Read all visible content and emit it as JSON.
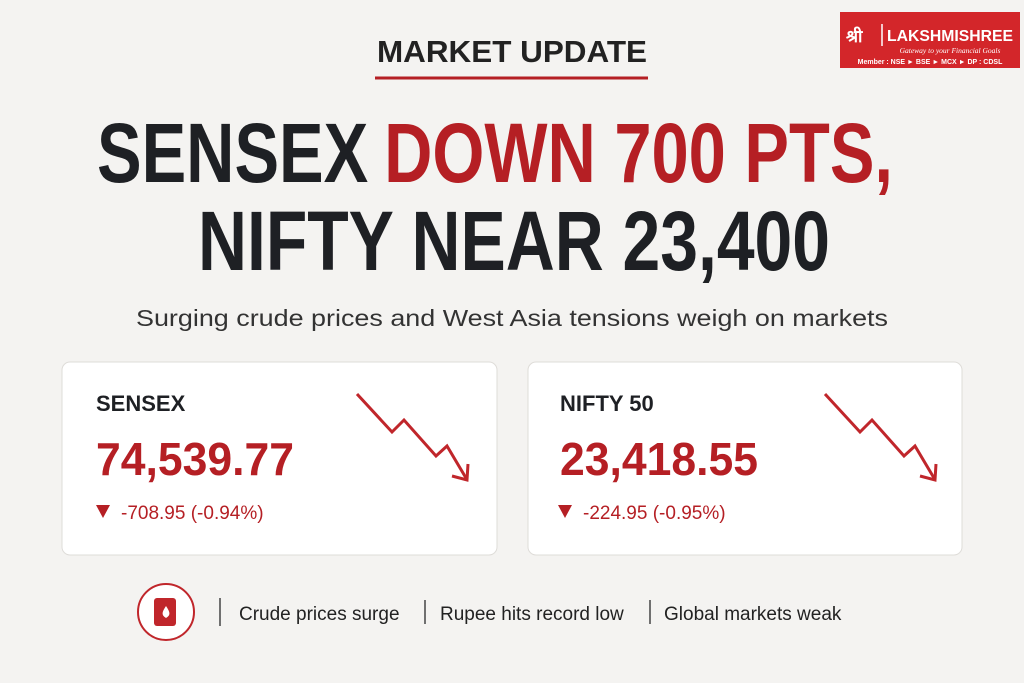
{
  "header": {
    "kicker": "MARKET UPDATE",
    "headline_line1_dark": "SENSEX",
    "headline_line1_red": "DOWN 700 PTS,",
    "headline_line2": "NIFTY NEAR 23,400",
    "subtitle": "Surging crude prices and West Asia tensions weigh on markets"
  },
  "logo": {
    "mark": "श्री",
    "name": "LAKSHMISHREE",
    "tagline": "Gateway to your Financial Goals",
    "membership": "Member : NSE ► BSE ► MCX ► DP : CDSL"
  },
  "cards": [
    {
      "name": "SENSEX",
      "value": "74,539.77",
      "change": "-708.95 (-0.94%)"
    },
    {
      "name": "NIFTY 50",
      "value": "23,418.55",
      "change": "-224.95 (-0.95%)"
    }
  ],
  "footer": {
    "items": [
      "Crude prices surge",
      "Rupee hits record low",
      "Global markets weak"
    ]
  }
}
